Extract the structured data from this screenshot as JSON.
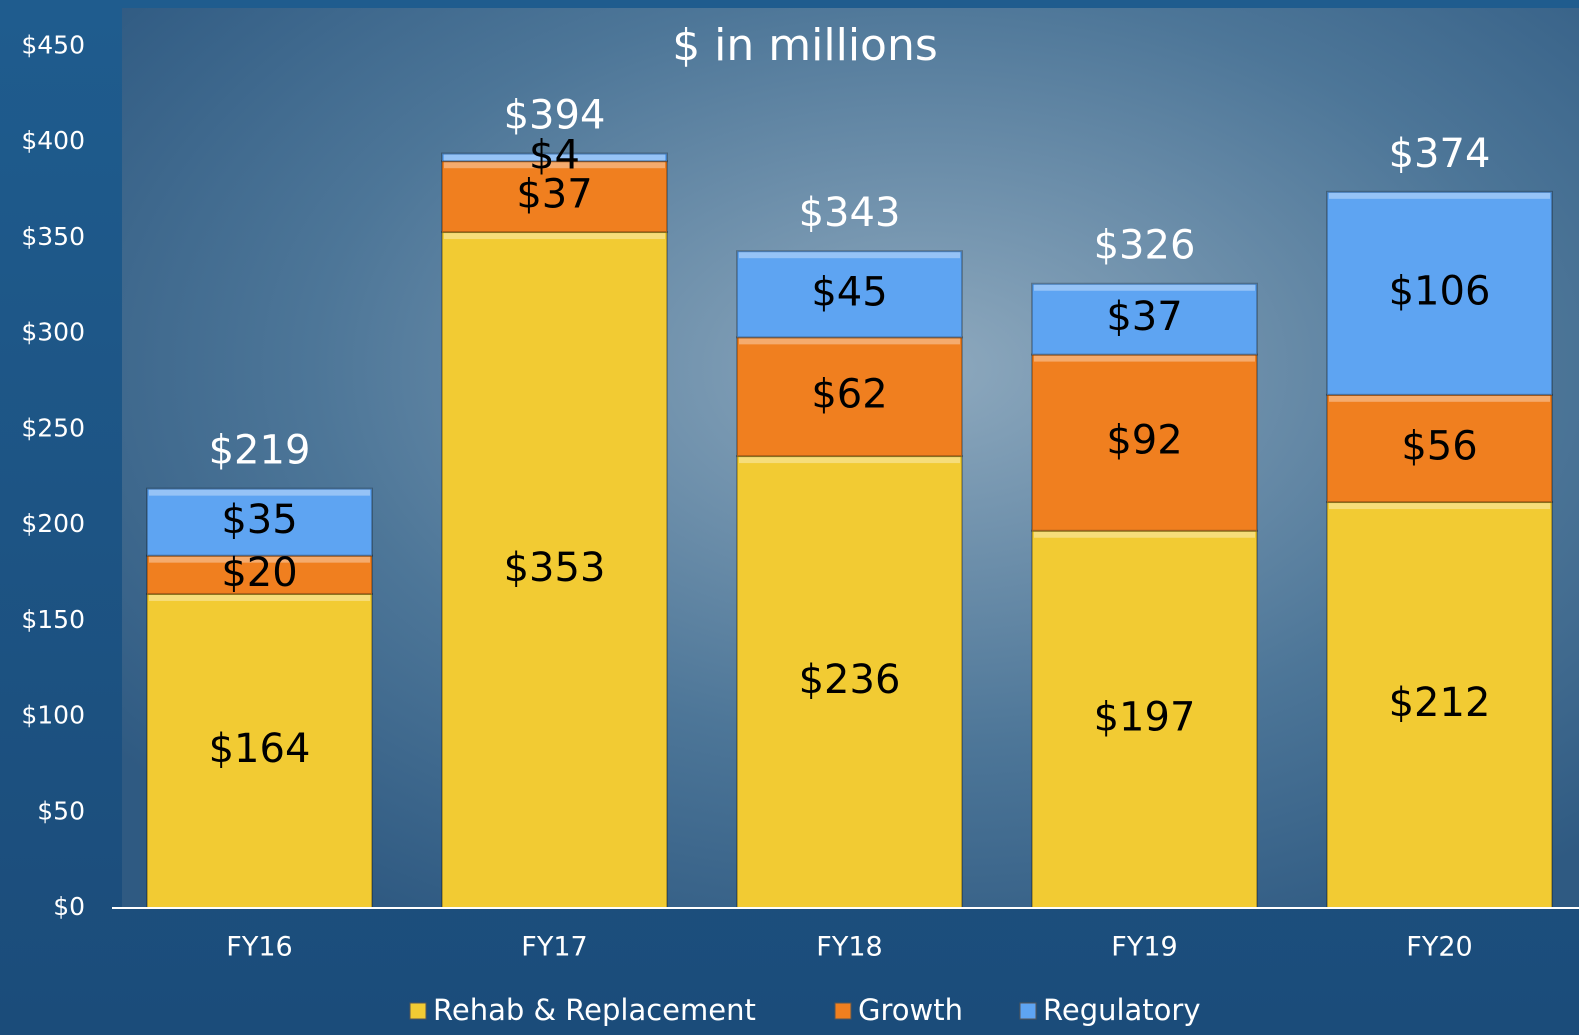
{
  "chart_data": {
    "type": "stacked_bar",
    "subtitle": "$ in millions",
    "categories": [
      "FY16",
      "FY17",
      "FY18",
      "FY19",
      "FY20"
    ],
    "series": [
      {
        "name": "Rehab & Replacement",
        "color": "#f2cb33",
        "values": [
          164,
          353,
          236,
          197,
          212
        ],
        "value_labels": [
          "$164",
          "$353",
          "$236",
          "$197",
          "$212"
        ]
      },
      {
        "name": "Growth",
        "color": "#f07f1f",
        "values": [
          20,
          37,
          62,
          92,
          56
        ],
        "value_labels": [
          "$20",
          "$37",
          "$62",
          "$92",
          "$56"
        ]
      },
      {
        "name": "Regulatory",
        "color": "#5ea4f2",
        "values": [
          35,
          4,
          45,
          37,
          106
        ],
        "value_labels": [
          "$35",
          "$4",
          "$45",
          "$37",
          "$106"
        ]
      }
    ],
    "totals": [
      219,
      394,
      343,
      326,
      374
    ],
    "total_labels": [
      "$219",
      "$394",
      "$343",
      "$326",
      "$374"
    ],
    "ylim": [
      0,
      470
    ],
    "yticks": [
      {
        "value": 0,
        "label": "$0"
      },
      {
        "value": 50,
        "label": "$50"
      },
      {
        "value": 100,
        "label": "$100"
      },
      {
        "value": 150,
        "label": "$150"
      },
      {
        "value": 200,
        "label": "$200"
      },
      {
        "value": 250,
        "label": "$250"
      },
      {
        "value": 300,
        "label": "$300"
      },
      {
        "value": 350,
        "label": "$350"
      },
      {
        "value": 400,
        "label": "$400"
      },
      {
        "value": 450,
        "label": "$450"
      }
    ],
    "legend": "bottom"
  }
}
